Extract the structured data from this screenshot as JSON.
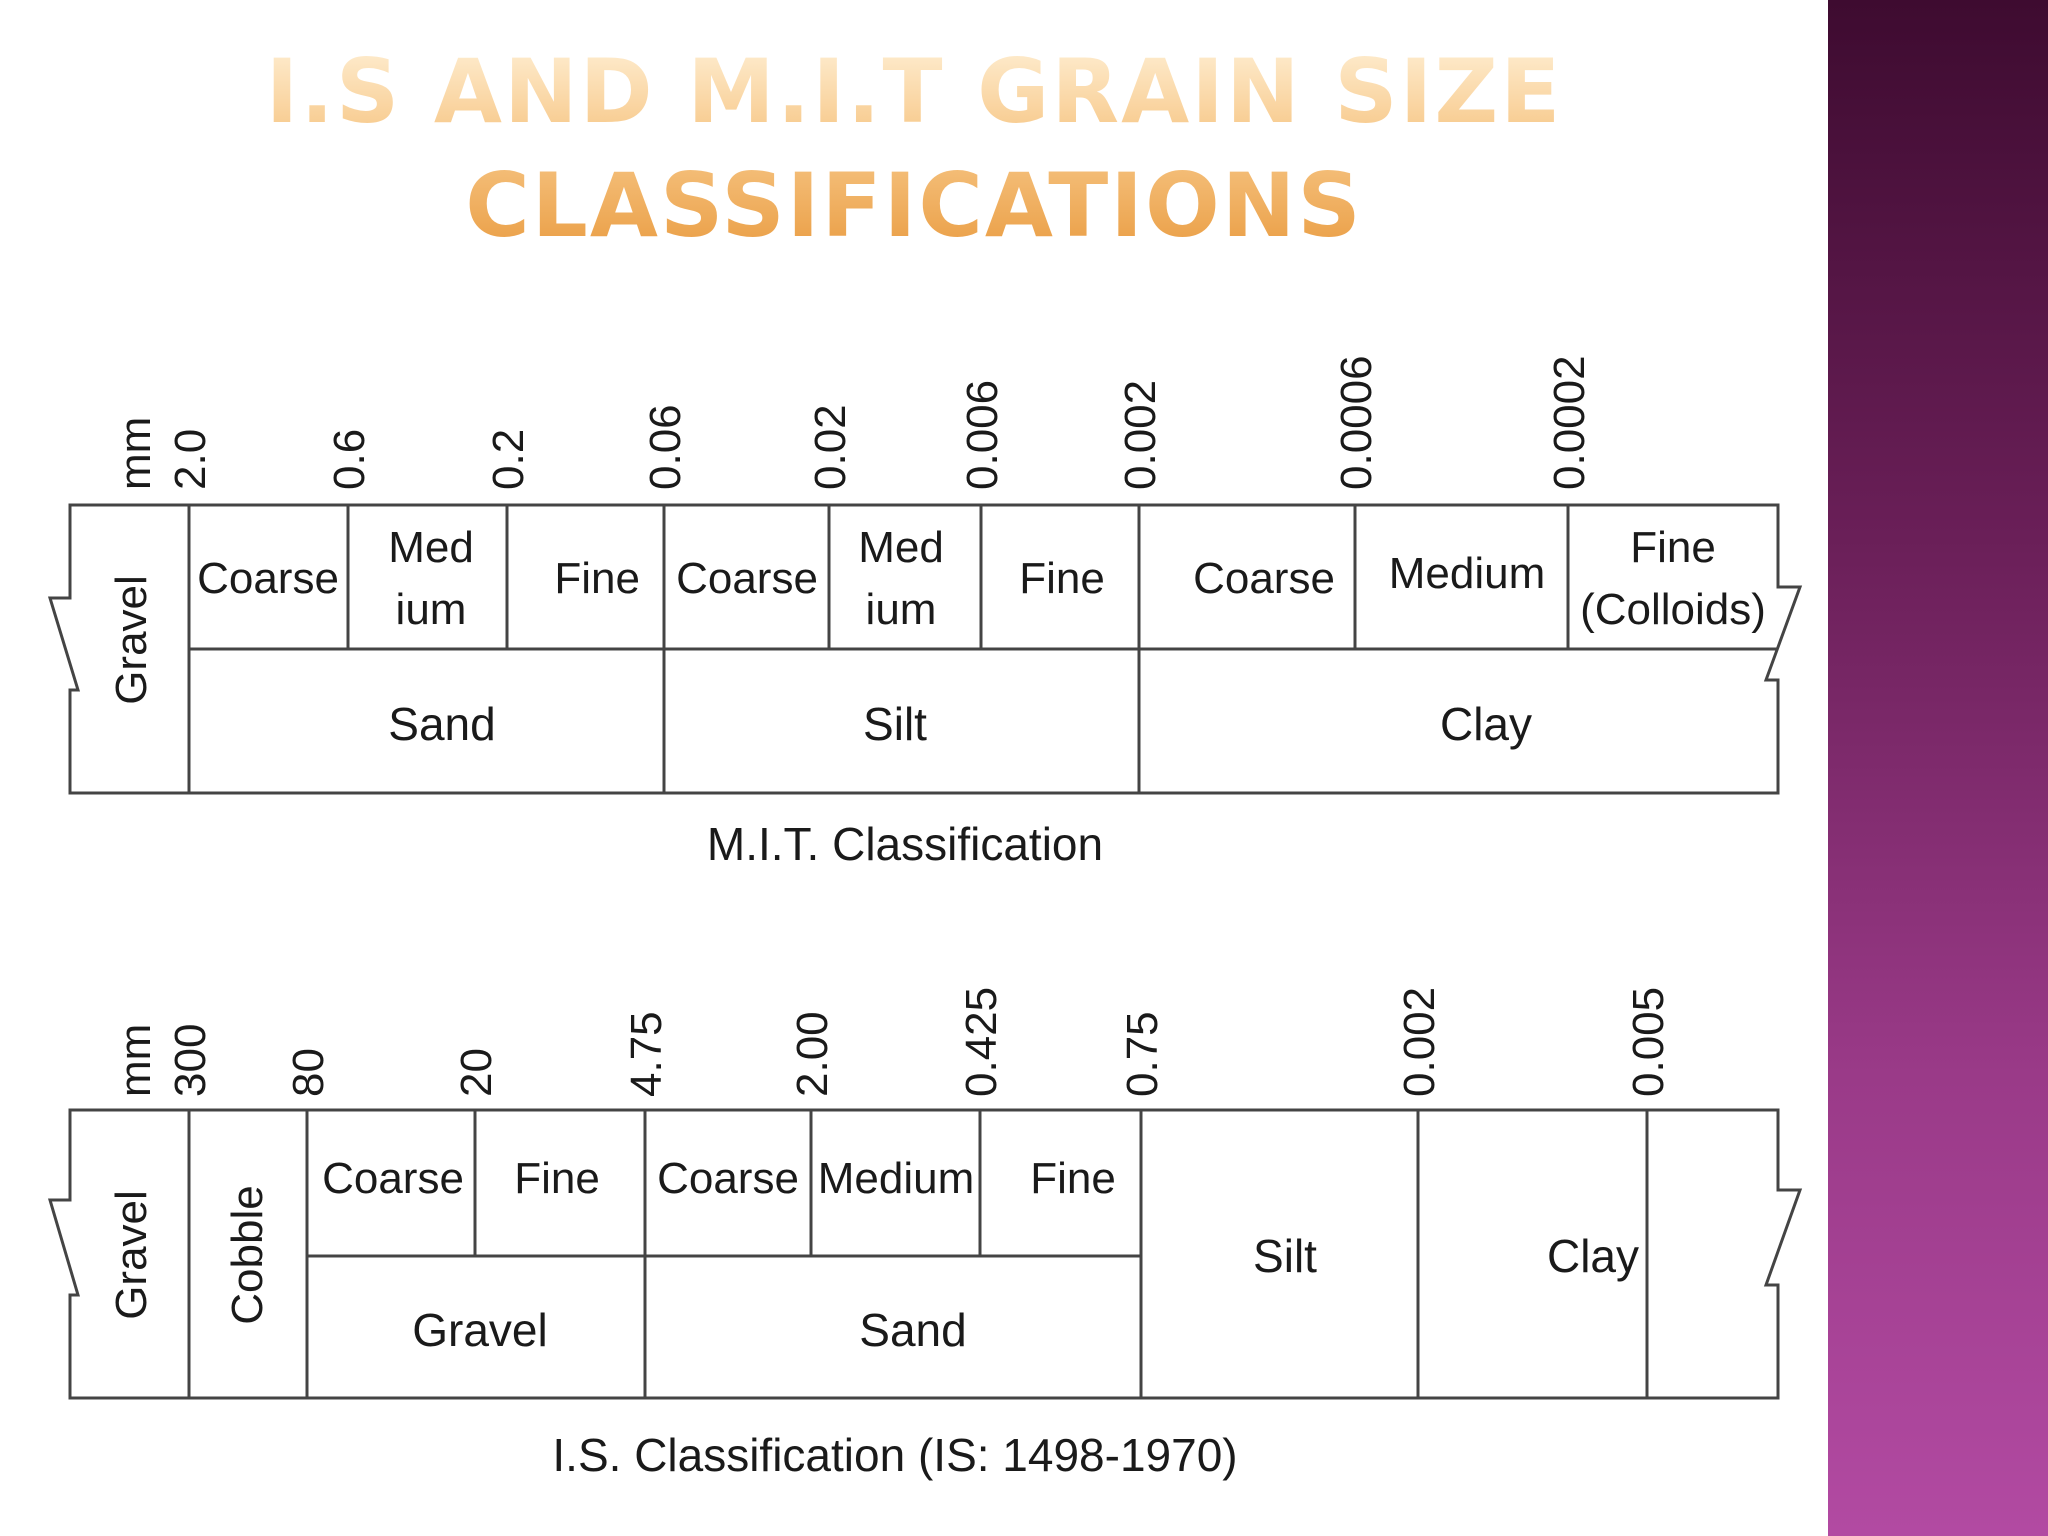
{
  "slide": {
    "title_line1": "I.S and M.I.T Grain size",
    "title_line2": "Classifications"
  },
  "mit": {
    "unit": "mm",
    "ticks": [
      "2.0",
      "0.6",
      "0.2",
      "0.06",
      "0.02",
      "0.006",
      "0.002",
      "0.0006",
      "0.0002"
    ],
    "gravel": "Gravel",
    "subclasses": [
      {
        "text": "Coarse"
      },
      {
        "line1": "Med",
        "line2": "ium"
      },
      {
        "text": "Fine"
      },
      {
        "text": "Coarse"
      },
      {
        "line1": "Med",
        "line2": "ium"
      },
      {
        "text": "Fine"
      },
      {
        "text": "Coarse"
      },
      {
        "text": "Medium"
      },
      {
        "line1": "Fine",
        "line2": "(Colloids)"
      }
    ],
    "classes": [
      "Sand",
      "Silt",
      "Clay"
    ],
    "caption": "M.I.T. Classification"
  },
  "is": {
    "unit": "mm",
    "ticks": [
      "300",
      "80",
      "20",
      "4.75",
      "2.00",
      "0.425",
      "0.75",
      "0.002",
      "0.005"
    ],
    "gravel": "Gravel",
    "cobble": "Cobble",
    "subclasses": [
      "Coarse",
      "Fine",
      "Coarse",
      "Medium",
      "Fine"
    ],
    "classes": [
      "Gravel",
      "Sand"
    ],
    "silt": "Silt",
    "clay": "Clay",
    "caption": "I.S. Classification (IS: 1498-1970)"
  }
}
